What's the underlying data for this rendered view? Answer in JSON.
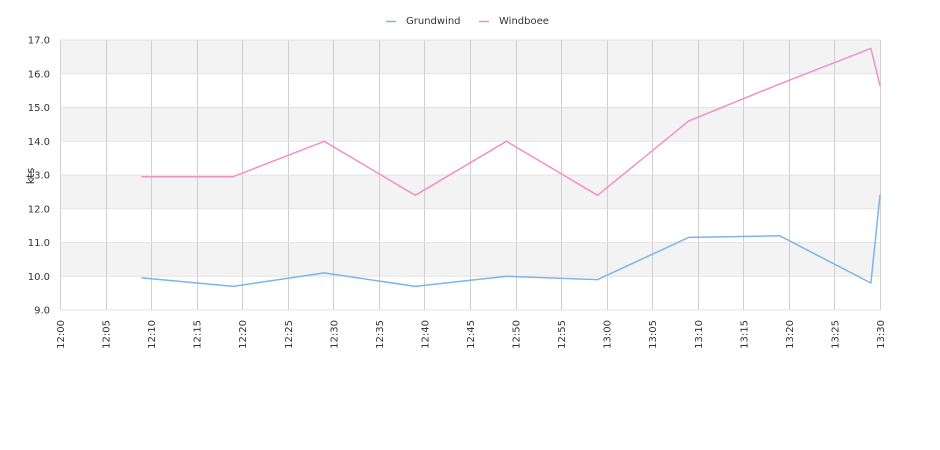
{
  "chart_data": {
    "type": "line",
    "title": "",
    "xlabel": "",
    "ylabel": "kts",
    "x_tick_labels": [
      "12:00",
      "12:05",
      "12:10",
      "12:15",
      "12:20",
      "12:25",
      "12:30",
      "12:35",
      "12:40",
      "12:45",
      "12:50",
      "12:55",
      "13:00",
      "13:05",
      "13:10",
      "13:15",
      "13:20",
      "13:25",
      "13:30"
    ],
    "x_range": [
      "12:00",
      "13:30"
    ],
    "ylim": [
      9.0,
      17.0
    ],
    "y_tick_labels": [
      "9.0",
      "10.0",
      "11.0",
      "12.0",
      "13.0",
      "14.0",
      "15.0",
      "16.0",
      "17.0"
    ],
    "grid": true,
    "legend_position": "top-center",
    "series": [
      {
        "name": "Grundwind",
        "color": "#7cb5ec",
        "x": [
          "12:09",
          "12:19",
          "12:29",
          "12:39",
          "12:49",
          "12:59",
          "13:09",
          "13:19",
          "13:29",
          "13:30"
        ],
        "values": [
          9.95,
          9.7,
          10.1,
          9.7,
          10.0,
          9.9,
          11.15,
          11.2,
          9.8,
          12.4
        ]
      },
      {
        "name": "Windboee",
        "color": "#f391c3",
        "x": [
          "12:09",
          "12:19",
          "12:29",
          "12:39",
          "12:49",
          "12:59",
          "13:09",
          "13:19",
          "13:29",
          "13:30"
        ],
        "values": [
          12.95,
          12.95,
          14.0,
          12.4,
          14.0,
          12.4,
          14.6,
          15.7,
          16.75,
          15.65
        ]
      }
    ]
  }
}
